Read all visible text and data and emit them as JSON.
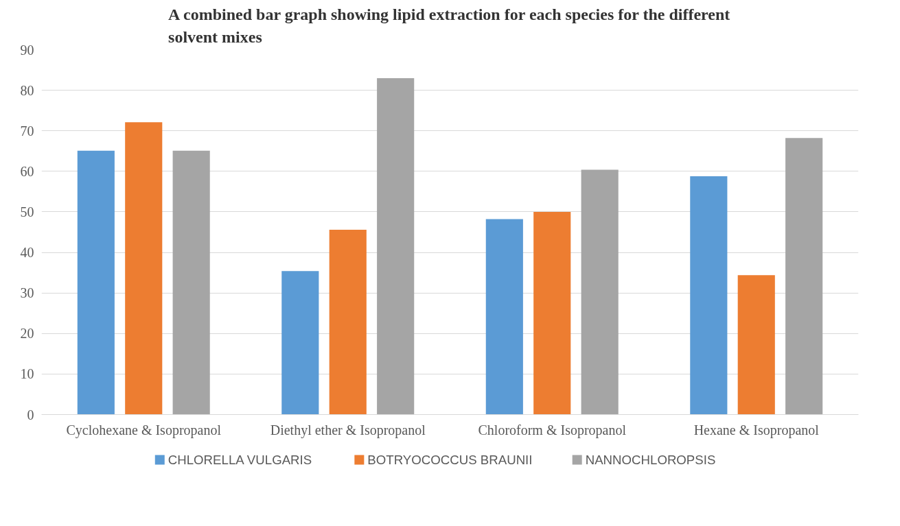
{
  "chart_data": {
    "type": "bar",
    "title": "A combined bar graph showing lipid extraction for each species for the different solvent mixes",
    "categories": [
      "Cyclohexane & Isopropanol",
      "Diethyl ether & Isopropanol",
      "Chloroform & Isopropanol",
      "Hexane & Isopropanol"
    ],
    "series": [
      {
        "name": "CHLORELLA VULGARIS",
        "color": "#5b9bd5",
        "values": [
          65.1,
          35.4,
          48.2,
          58.8
        ]
      },
      {
        "name": "BOTRYOCOCCUS BRAUNII",
        "color": "#ed7d31",
        "values": [
          72.1,
          45.6,
          50.0,
          34.4
        ]
      },
      {
        "name": "NANNOCHLOROPSIS",
        "color": "#a5a5a5",
        "values": [
          65.1,
          83.0,
          60.4,
          68.2
        ]
      }
    ],
    "ylim": [
      0,
      90
    ],
    "yticks": [
      0,
      10,
      20,
      30,
      40,
      50,
      60,
      70,
      80,
      90
    ],
    "grid": "y",
    "legend": "bottom"
  }
}
